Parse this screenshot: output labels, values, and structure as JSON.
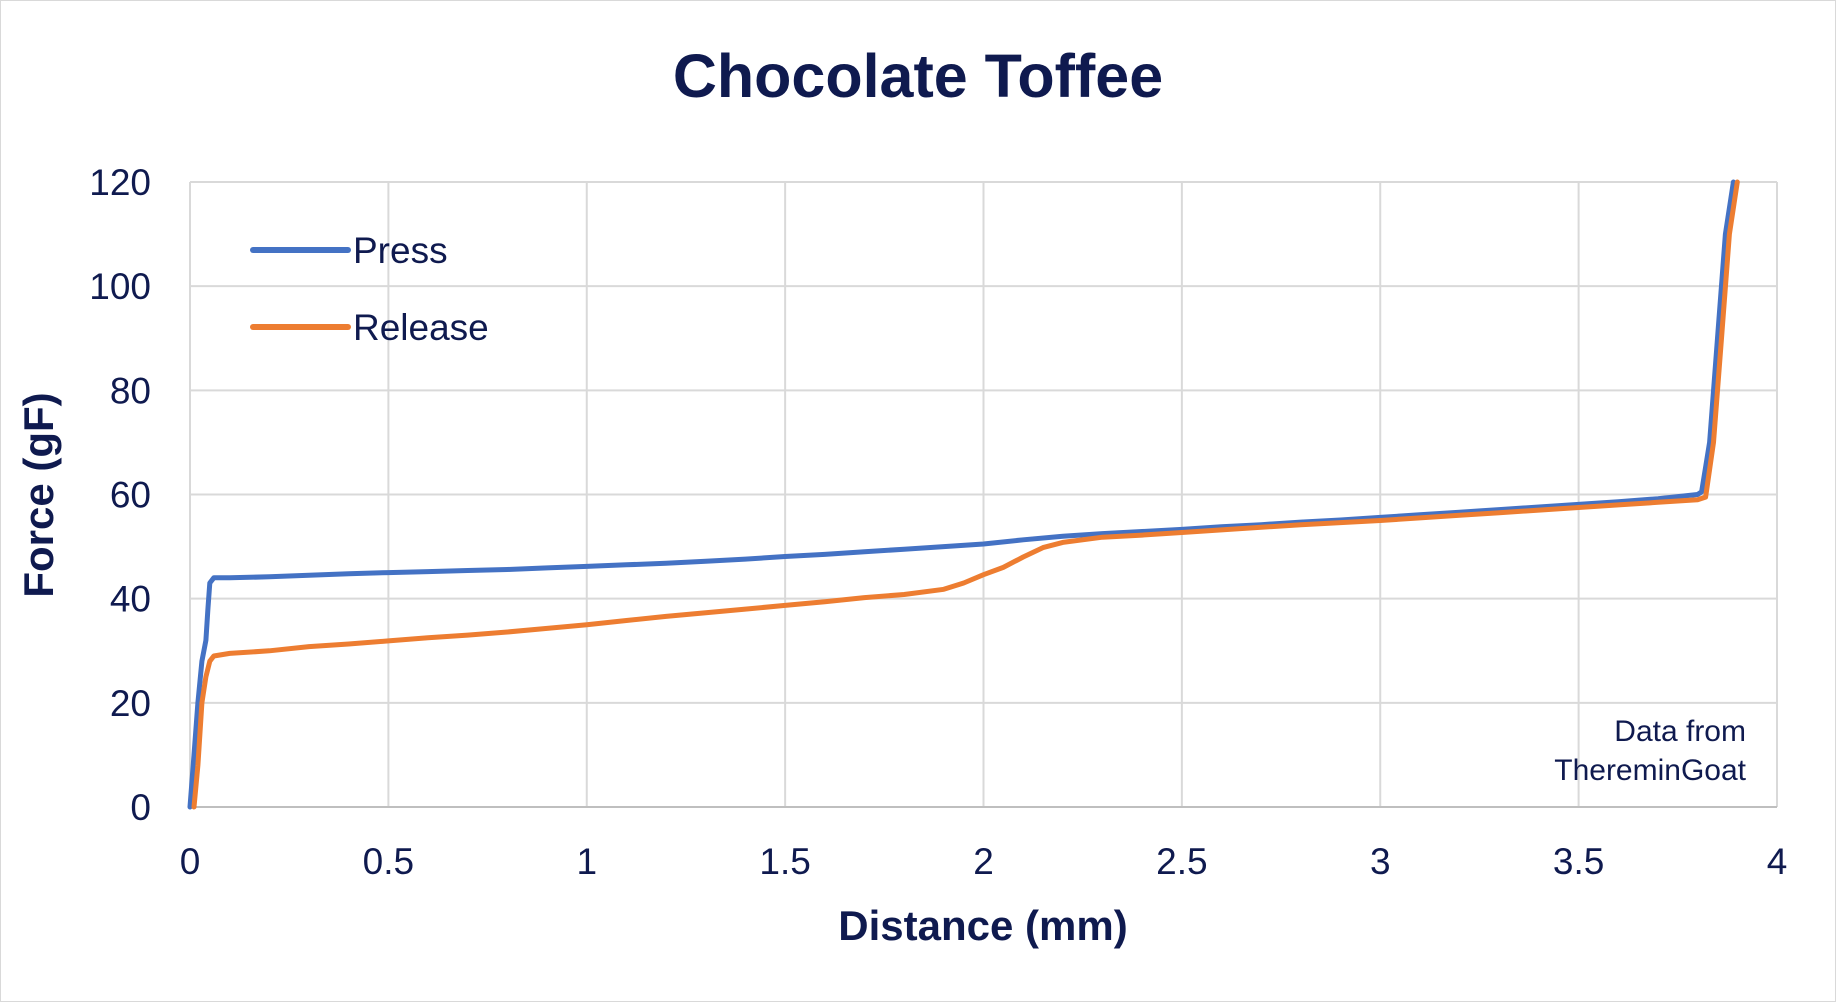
{
  "chart_data": {
    "type": "line",
    "title": "Chocolate Toffee",
    "xlabel": "Distance (mm)",
    "ylabel": "Force (gF)",
    "xlim": [
      0,
      4
    ],
    "ylim": [
      0,
      120
    ],
    "xticks": [
      0,
      0.5,
      1,
      1.5,
      2,
      2.5,
      3,
      3.5,
      4
    ],
    "xtick_labels": [
      "0",
      "0.5",
      "1",
      "1.5",
      "2",
      "2.5",
      "3",
      "3.5",
      "4"
    ],
    "yticks": [
      0,
      20,
      40,
      60,
      80,
      100,
      120
    ],
    "ytick_labels": [
      "0",
      "20",
      "40",
      "60",
      "80",
      "100",
      "120"
    ],
    "grid": true,
    "legend_position": "top-left",
    "annotation": {
      "line1": "Data from",
      "line2": "ThereminGoat"
    },
    "series": [
      {
        "name": "Press",
        "color": "#4472c4",
        "points": [
          [
            0,
            0
          ],
          [
            0.01,
            10
          ],
          [
            0.02,
            20
          ],
          [
            0.03,
            28
          ],
          [
            0.04,
            32
          ],
          [
            0.045,
            38
          ],
          [
            0.05,
            43
          ],
          [
            0.06,
            44
          ],
          [
            0.1,
            44
          ],
          [
            0.2,
            44.2
          ],
          [
            0.3,
            44.5
          ],
          [
            0.4,
            44.8
          ],
          [
            0.5,
            45
          ],
          [
            0.6,
            45.2
          ],
          [
            0.7,
            45.4
          ],
          [
            0.8,
            45.6
          ],
          [
            0.9,
            45.9
          ],
          [
            1.0,
            46.2
          ],
          [
            1.1,
            46.5
          ],
          [
            1.2,
            46.8
          ],
          [
            1.3,
            47.2
          ],
          [
            1.4,
            47.6
          ],
          [
            1.5,
            48.1
          ],
          [
            1.6,
            48.5
          ],
          [
            1.7,
            49
          ],
          [
            1.8,
            49.5
          ],
          [
            1.9,
            50
          ],
          [
            2.0,
            50.5
          ],
          [
            2.1,
            51.3
          ],
          [
            2.2,
            52
          ],
          [
            2.3,
            52.5
          ],
          [
            2.4,
            52.9
          ],
          [
            2.5,
            53.3
          ],
          [
            2.6,
            53.8
          ],
          [
            2.7,
            54.2
          ],
          [
            2.8,
            54.7
          ],
          [
            2.9,
            55.1
          ],
          [
            3.0,
            55.6
          ],
          [
            3.1,
            56.1
          ],
          [
            3.2,
            56.6
          ],
          [
            3.3,
            57.1
          ],
          [
            3.4,
            57.6
          ],
          [
            3.5,
            58.1
          ],
          [
            3.6,
            58.6
          ],
          [
            3.7,
            59.2
          ],
          [
            3.8,
            60
          ],
          [
            3.81,
            60.5
          ],
          [
            3.83,
            70
          ],
          [
            3.85,
            90
          ],
          [
            3.87,
            110
          ],
          [
            3.89,
            120
          ]
        ]
      },
      {
        "name": "Release",
        "color": "#ed7d31",
        "points": [
          [
            0.01,
            0
          ],
          [
            0.02,
            8
          ],
          [
            0.03,
            20
          ],
          [
            0.04,
            25
          ],
          [
            0.05,
            28
          ],
          [
            0.06,
            29
          ],
          [
            0.1,
            29.5
          ],
          [
            0.2,
            30
          ],
          [
            0.3,
            30.8
          ],
          [
            0.4,
            31.3
          ],
          [
            0.5,
            31.9
          ],
          [
            0.6,
            32.5
          ],
          [
            0.7,
            33
          ],
          [
            0.8,
            33.6
          ],
          [
            0.9,
            34.3
          ],
          [
            1.0,
            35
          ],
          [
            1.1,
            35.8
          ],
          [
            1.2,
            36.6
          ],
          [
            1.3,
            37.3
          ],
          [
            1.4,
            38
          ],
          [
            1.5,
            38.7
          ],
          [
            1.6,
            39.4
          ],
          [
            1.7,
            40.2
          ],
          [
            1.8,
            40.8
          ],
          [
            1.9,
            41.8
          ],
          [
            1.95,
            43
          ],
          [
            2.0,
            44.6
          ],
          [
            2.05,
            46
          ],
          [
            2.1,
            48
          ],
          [
            2.15,
            49.8
          ],
          [
            2.2,
            50.8
          ],
          [
            2.3,
            51.8
          ],
          [
            2.4,
            52.2
          ],
          [
            2.5,
            52.7
          ],
          [
            2.6,
            53.2
          ],
          [
            2.7,
            53.7
          ],
          [
            2.8,
            54.2
          ],
          [
            2.9,
            54.6
          ],
          [
            3.0,
            55
          ],
          [
            3.1,
            55.5
          ],
          [
            3.2,
            56
          ],
          [
            3.3,
            56.5
          ],
          [
            3.4,
            57
          ],
          [
            3.5,
            57.5
          ],
          [
            3.6,
            58
          ],
          [
            3.7,
            58.5
          ],
          [
            3.8,
            59
          ],
          [
            3.82,
            59.5
          ],
          [
            3.84,
            70
          ],
          [
            3.86,
            90
          ],
          [
            3.88,
            110
          ],
          [
            3.9,
            120
          ]
        ]
      }
    ]
  }
}
